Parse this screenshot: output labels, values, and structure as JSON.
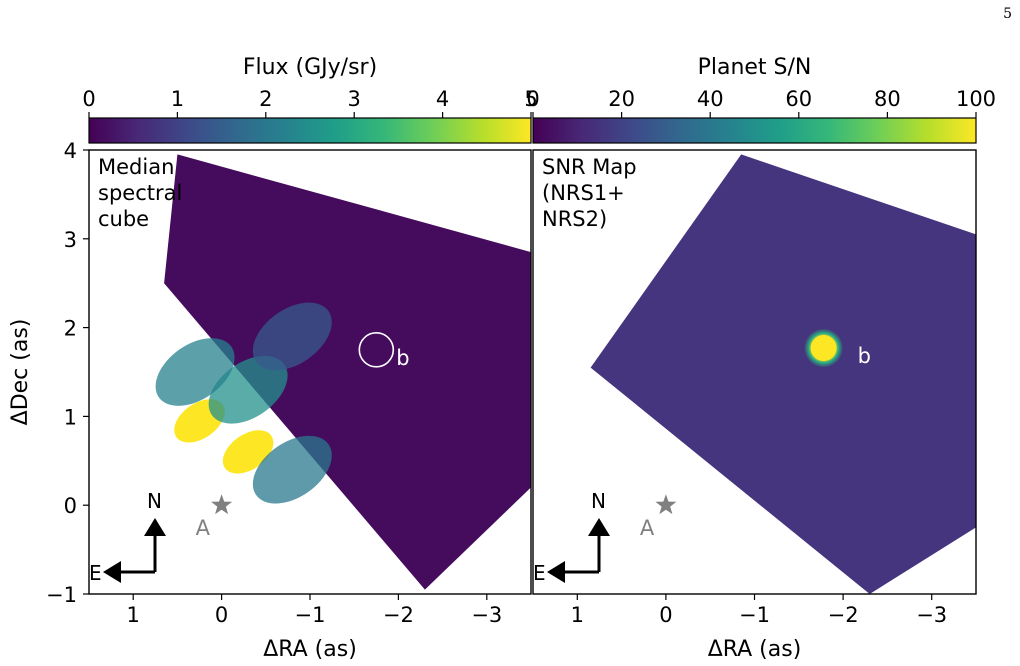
{
  "page_number": "5",
  "colors": {
    "viridis": [
      "#440154",
      "#482878",
      "#3e4989",
      "#31688e",
      "#26828e",
      "#1f9e89",
      "#35b779",
      "#6ece58",
      "#b5de2b",
      "#fde725"
    ],
    "compass": "#000000",
    "star": "#808080",
    "circle": "#ffffff",
    "planet_label": "#ffffff"
  },
  "chart_data": [
    {
      "type": "heatmap",
      "title": "",
      "panel_label": [
        "Median",
        "spectral",
        "cube"
      ],
      "xlabel": "ΔRA (as)",
      "ylabel": "ΔDec (as)",
      "xlim": [
        1.5,
        -3.5
      ],
      "ylim": [
        -1,
        4
      ],
      "xticks": [
        1,
        0,
        -1,
        -2,
        -3
      ],
      "xtick_labels": [
        "1",
        "0",
        "−1",
        "−2",
        "−3"
      ],
      "yticks": [
        -1,
        0,
        1,
        2,
        3,
        4
      ],
      "ytick_labels": [
        "−1",
        "0",
        "1",
        "2",
        "3",
        "4"
      ],
      "colorbar": {
        "label": "Flux (GJy/sr)",
        "range": [
          0,
          5
        ],
        "ticks": [
          0,
          1,
          2,
          3,
          4,
          5
        ],
        "tick_labels": [
          "0",
          "1",
          "2",
          "3",
          "4",
          "5"
        ],
        "colormap": "viridis"
      },
      "star": {
        "label": "A",
        "x": 0,
        "y": 0
      },
      "planet": {
        "label": "b",
        "x": -1.75,
        "y": 1.75,
        "marker": "circle"
      },
      "compass": {
        "north": "N",
        "east": "E"
      },
      "field_corners": [
        [
          0.5,
          3.95
        ],
        [
          -3.5,
          2.85
        ],
        [
          -3.5,
          0.2
        ],
        [
          -2.3,
          -0.95
        ],
        [
          0.65,
          2.5
        ]
      ],
      "emission_blobs": [
        {
          "x": 0.25,
          "y": 0.95,
          "value": 5.0
        },
        {
          "x": -0.3,
          "y": 0.6,
          "value": 5.0
        },
        {
          "x": -0.3,
          "y": 1.3,
          "value": 2.5
        },
        {
          "x": -0.8,
          "y": 0.4,
          "value": 2.0
        },
        {
          "x": 0.3,
          "y": 1.5,
          "value": 2.2
        },
        {
          "x": -0.8,
          "y": 1.9,
          "value": 1.4
        }
      ]
    },
    {
      "type": "heatmap",
      "title": "",
      "panel_label": [
        "SNR Map",
        "(NRS1+",
        " NRS2)"
      ],
      "xlabel": "ΔRA (as)",
      "ylabel": "",
      "xlim": [
        1.5,
        -3.5
      ],
      "ylim": [
        -1,
        4
      ],
      "xticks": [
        1,
        0,
        -1,
        -2,
        -3
      ],
      "xtick_labels": [
        "1",
        "0",
        "−1",
        "−2",
        "−3"
      ],
      "colorbar": {
        "label": "Planet S/N",
        "range": [
          0,
          100
        ],
        "ticks": [
          0,
          20,
          40,
          60,
          80,
          100
        ],
        "tick_labels": [
          "0",
          "20",
          "40",
          "60",
          "80",
          "100"
        ],
        "colormap": "viridis"
      },
      "star": {
        "label": "A",
        "x": 0,
        "y": 0
      },
      "planet": {
        "label": "b",
        "x": -1.78,
        "y": 1.77,
        "peak_sn": 100
      },
      "compass": {
        "north": "N",
        "east": "E"
      },
      "field_corners": [
        [
          -0.85,
          3.95
        ],
        [
          -3.5,
          3.05
        ],
        [
          -3.5,
          -0.25
        ],
        [
          -2.3,
          -1.0
        ],
        [
          0.85,
          1.55
        ]
      ],
      "background_sn": 12
    }
  ]
}
